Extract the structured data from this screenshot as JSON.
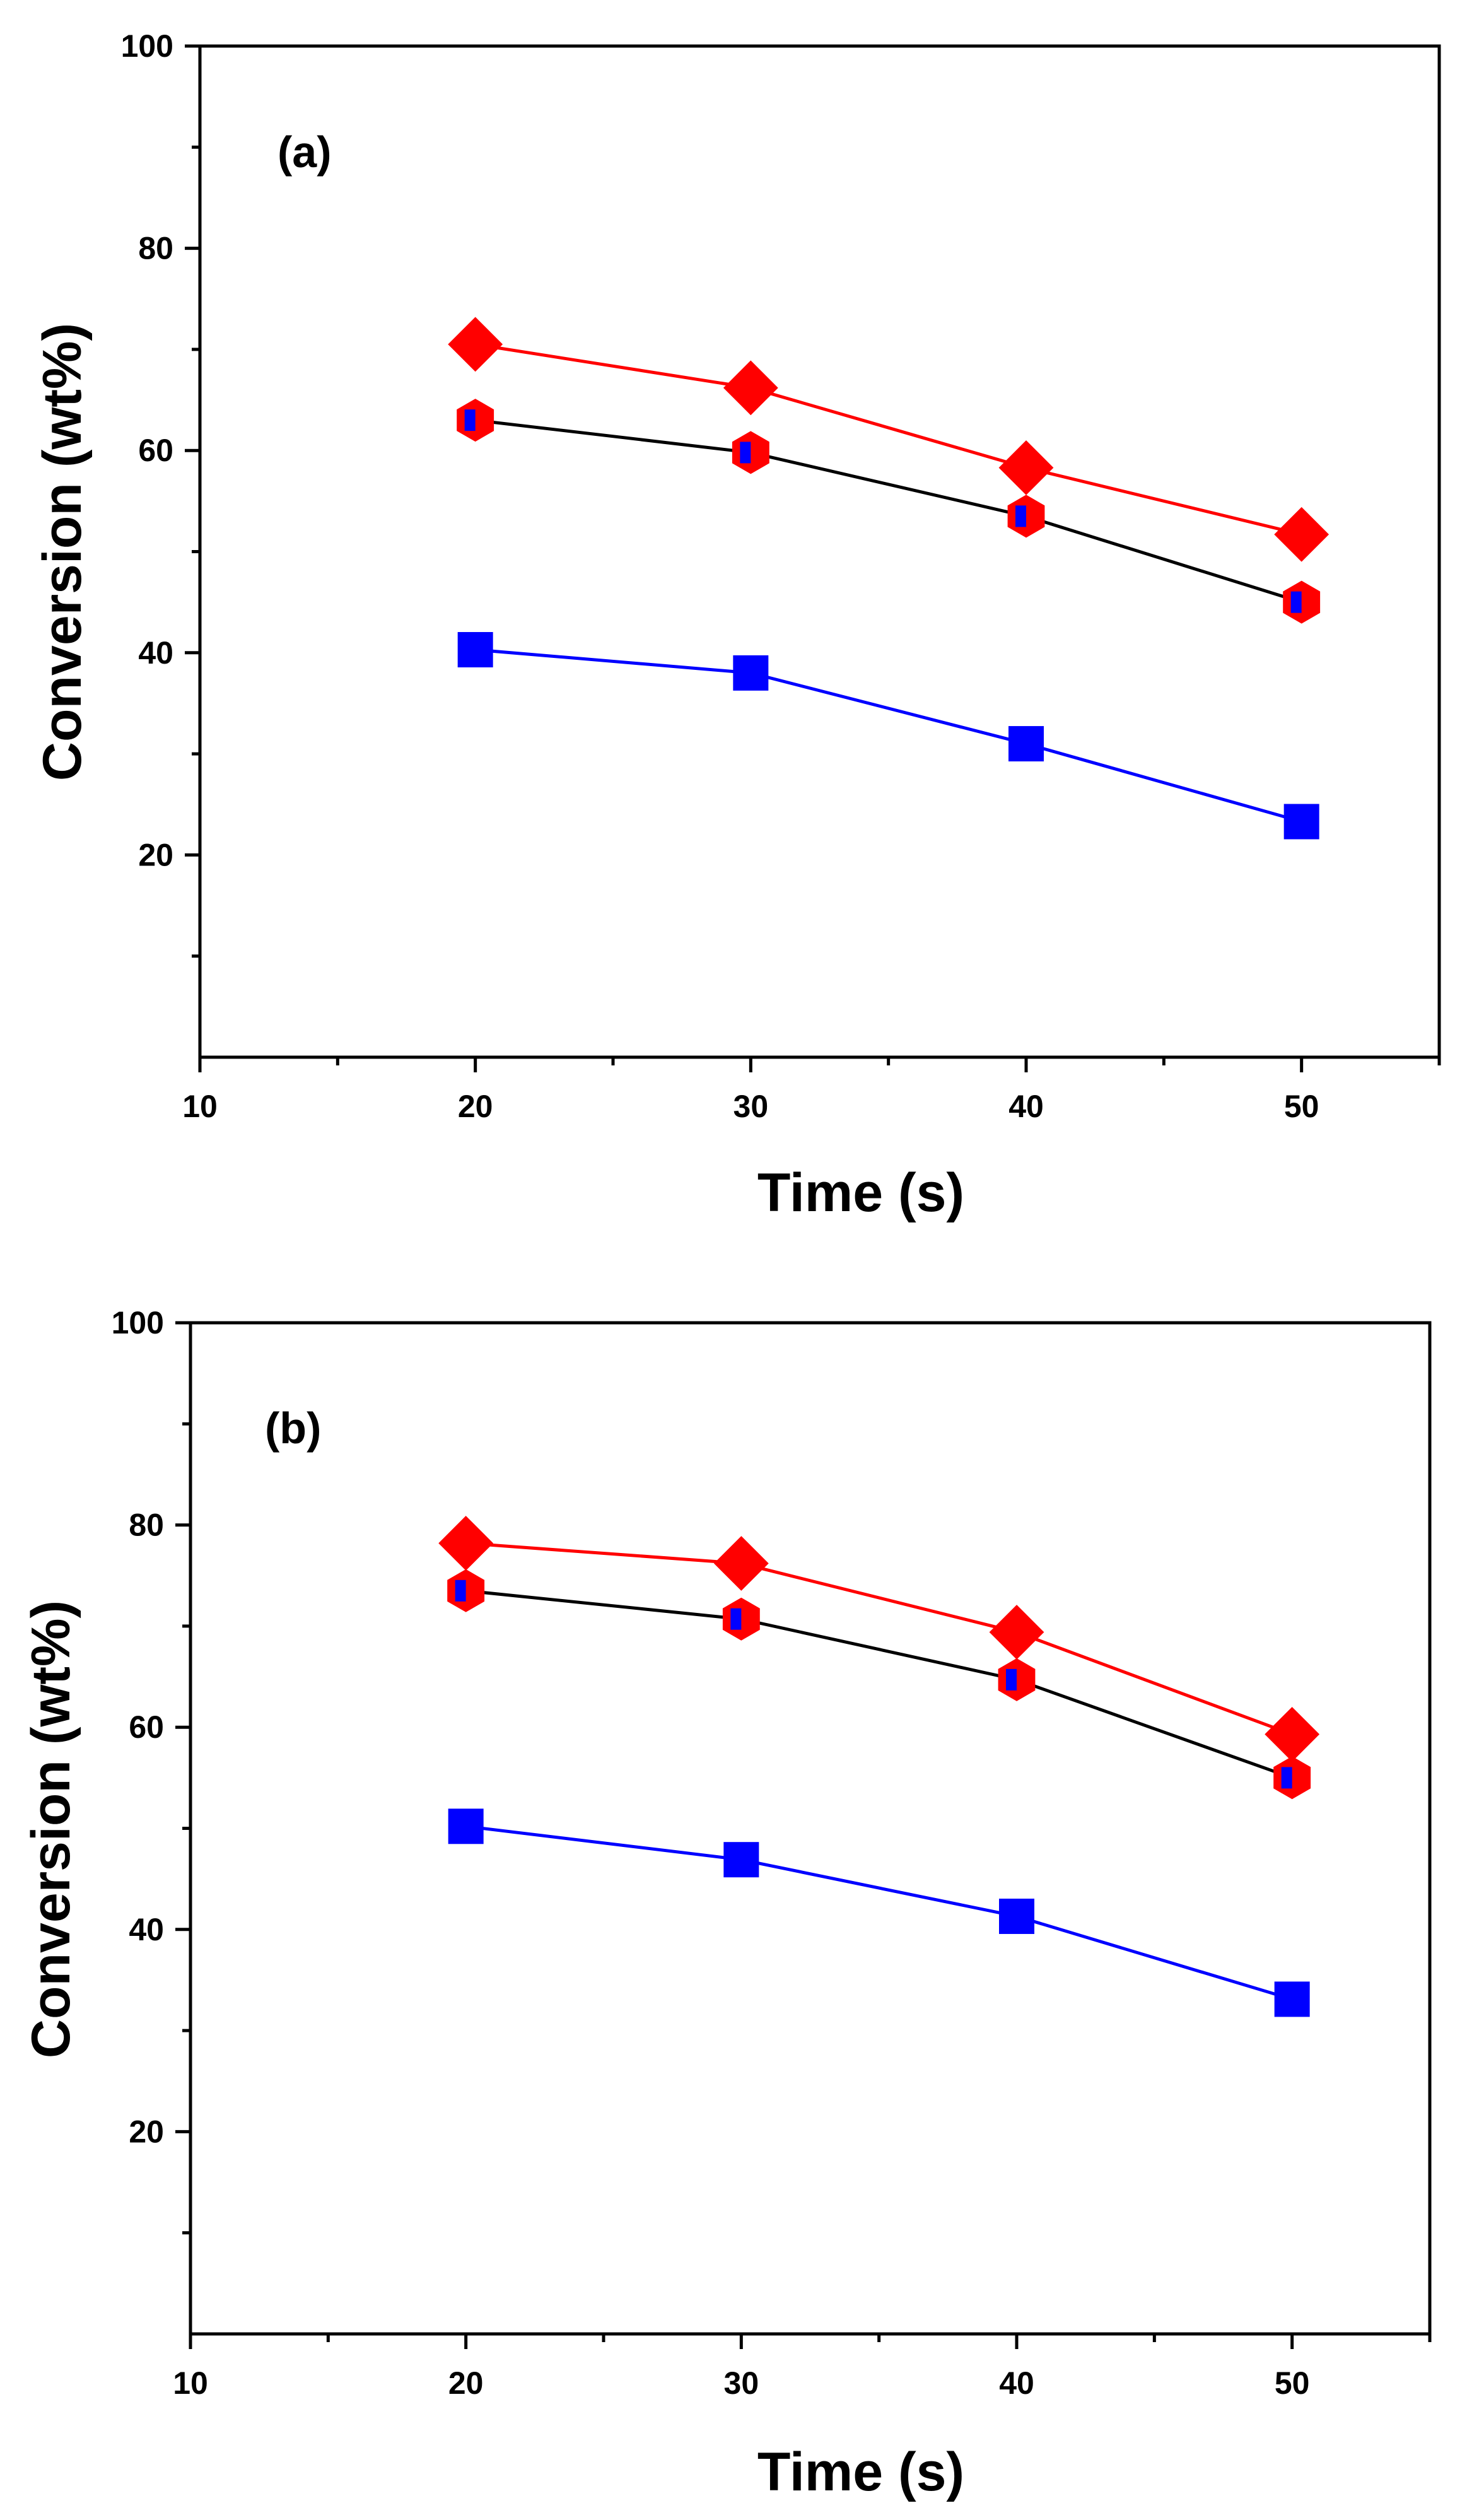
{
  "figure": {
    "colors": {
      "red": "#ff0000",
      "blue": "#0000ff",
      "black": "#000000"
    }
  },
  "chart_data": [
    {
      "type": "line",
      "panel_label": "(a)",
      "xlabel": "Time (s)",
      "ylabel": "Conversion (wt%)",
      "xlim": [
        10,
        55
      ],
      "ylim": [
        0,
        100
      ],
      "x_ticks": [
        10,
        20,
        30,
        40,
        50
      ],
      "x_minor_ticks": [
        15,
        25,
        35,
        45,
        55
      ],
      "y_ticks": [
        20,
        40,
        60,
        80,
        100
      ],
      "y_minor_ticks": [
        10,
        30,
        50,
        70,
        90
      ],
      "x": [
        20,
        30,
        40,
        50
      ],
      "series": [
        {
          "name": "red-diamond",
          "marker": "diamond",
          "color": "#ff0000",
          "values": [
            70.5,
            66.2,
            58.3,
            51.7
          ]
        },
        {
          "name": "half-filled-hexagon",
          "marker": "hexagon-half",
          "color": "#000000",
          "values": [
            63.0,
            59.8,
            53.5,
            45.0
          ]
        },
        {
          "name": "blue-square",
          "marker": "square",
          "color": "#0000ff",
          "values": [
            40.3,
            38.0,
            31.0,
            23.3
          ]
        }
      ]
    },
    {
      "type": "line",
      "panel_label": "(b)",
      "xlabel": "Time (s)",
      "ylabel": "Conversion (wt%)",
      "xlim": [
        10,
        55
      ],
      "ylim": [
        0,
        100
      ],
      "x_ticks": [
        10,
        20,
        30,
        40,
        50
      ],
      "x_minor_ticks": [
        15,
        25,
        35,
        45,
        55
      ],
      "y_ticks": [
        20,
        40,
        60,
        80,
        100
      ],
      "y_minor_ticks": [
        10,
        30,
        50,
        70,
        90
      ],
      "x": [
        20,
        30,
        40,
        50
      ],
      "series": [
        {
          "name": "red-diamond",
          "marker": "diamond",
          "color": "#ff0000",
          "values": [
            78.2,
            76.2,
            69.4,
            59.3
          ]
        },
        {
          "name": "half-filled-hexagon",
          "marker": "hexagon-half",
          "color": "#000000",
          "values": [
            73.5,
            70.7,
            64.7,
            55.0
          ]
        },
        {
          "name": "blue-square",
          "marker": "square",
          "color": "#0000ff",
          "values": [
            50.2,
            46.9,
            41.3,
            33.1
          ]
        }
      ]
    }
  ]
}
